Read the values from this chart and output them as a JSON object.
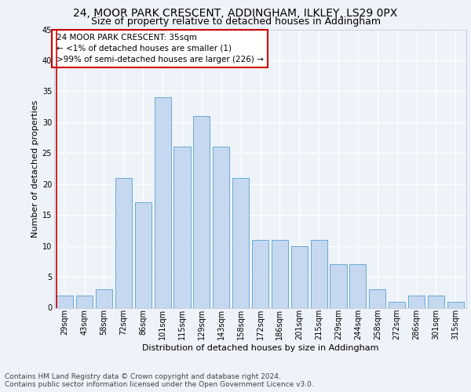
{
  "title1": "24, MOOR PARK CRESCENT, ADDINGHAM, ILKLEY, LS29 0PX",
  "title2": "Size of property relative to detached houses in Addingham",
  "xlabel": "Distribution of detached houses by size in Addingham",
  "ylabel": "Number of detached properties",
  "categories": [
    "29sqm",
    "43sqm",
    "58sqm",
    "72sqm",
    "86sqm",
    "101sqm",
    "115sqm",
    "129sqm",
    "143sqm",
    "158sqm",
    "172sqm",
    "186sqm",
    "201sqm",
    "215sqm",
    "229sqm",
    "244sqm",
    "258sqm",
    "272sqm",
    "286sqm",
    "301sqm",
    "315sqm"
  ],
  "values": [
    2,
    2,
    3,
    21,
    17,
    34,
    26,
    31,
    26,
    21,
    11,
    11,
    10,
    11,
    7,
    7,
    3,
    1,
    2,
    2,
    1
  ],
  "bar_color": "#c5d8f0",
  "bar_edge_color": "#6aaad4",
  "annotation_box_text": "24 MOOR PARK CRESCENT: 35sqm\n← <1% of detached houses are smaller (1)\n>99% of semi-detached houses are larger (226) →",
  "annotation_box_color": "#ffffff",
  "annotation_box_edge_color": "#cc0000",
  "vline_color": "#cc0000",
  "footer1": "Contains HM Land Registry data © Crown copyright and database right 2024.",
  "footer2": "Contains public sector information licensed under the Open Government Licence v3.0.",
  "ylim": [
    0,
    45
  ],
  "background_color": "#eef2f9",
  "grid_color": "#ffffff",
  "title1_fontsize": 10,
  "title2_fontsize": 9,
  "axis_label_fontsize": 8,
  "tick_fontsize": 7,
  "annot_fontsize": 7.5,
  "footer_fontsize": 6.5
}
